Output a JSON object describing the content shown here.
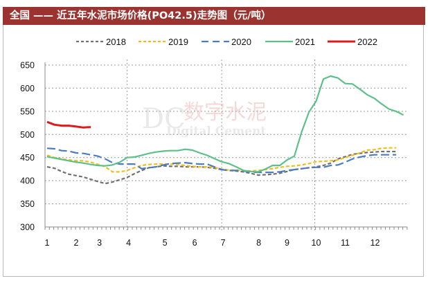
{
  "title": "全国 —— 近五年水泥市场价格(PO42.5)走势图（元/吨）",
  "watermark": {
    "logo": "DC",
    "cn": "数字水泥",
    "en": "Digital Cement"
  },
  "chart_data": {
    "type": "line",
    "title": "全国 —— 近五年水泥市场价格(PO42.5)走势图（元/吨）",
    "xlabel": "",
    "ylabel": "",
    "x_tick_labels": [
      "1",
      "2",
      "3",
      "4",
      "5",
      "6",
      "7",
      "8",
      "9",
      "10",
      "11",
      "12"
    ],
    "y_ticks": [
      300,
      350,
      400,
      450,
      500,
      550,
      600,
      650
    ],
    "ylim": [
      300,
      650
    ],
    "grid": "dotted horizontal; dotted vertical at 4, 7, 10",
    "legend_position": "top",
    "sampling": "weekly",
    "series": [
      {
        "name": "2018",
        "color": "#707070",
        "style": "dashed",
        "values": [
          430,
          427,
          420,
          414,
          411,
          408,
          403,
          398,
          394,
          397,
          402,
          407,
          415,
          422,
          428,
          430,
          432,
          431,
          431,
          430,
          430,
          430,
          429,
          427,
          424,
          422,
          421,
          419,
          416,
          412,
          413,
          414,
          416,
          420,
          424,
          426,
          428,
          430,
          433,
          438,
          447,
          452,
          457,
          459,
          461,
          462,
          463,
          463,
          463
        ]
      },
      {
        "name": "2019",
        "color": "#f2bc1a",
        "style": "dashed",
        "values": [
          455,
          450,
          447,
          445,
          443,
          443,
          440,
          435,
          430,
          419,
          419,
          422,
          428,
          433,
          435,
          436,
          436,
          436,
          435,
          433,
          431,
          430,
          430,
          429,
          425,
          423,
          423,
          421,
          421,
          422,
          424,
          426,
          429,
          431,
          432,
          434,
          437,
          441,
          442,
          443,
          445,
          450,
          455,
          460,
          466,
          467,
          470,
          471,
          471
        ]
      },
      {
        "name": "2020",
        "color": "#4a7cc4",
        "style": "longdash",
        "values": [
          470,
          469,
          465,
          464,
          460,
          459,
          456,
          453,
          447,
          439,
          436,
          436,
          436,
          426,
          428,
          430,
          434,
          437,
          438,
          439,
          437,
          436,
          436,
          430,
          424,
          422,
          422,
          421,
          419,
          418,
          418,
          418,
          419,
          422,
          424,
          426,
          428,
          429,
          429,
          433,
          434,
          440,
          447,
          451,
          454,
          456,
          456,
          456,
          456
        ]
      },
      {
        "name": "2021",
        "color": "#5cc08a",
        "style": "solid",
        "values": [
          452,
          449,
          446,
          443,
          440,
          438,
          435,
          433,
          432,
          434,
          440,
          450,
          451,
          455,
          459,
          462,
          464,
          465,
          465,
          468,
          466,
          460,
          455,
          448,
          441,
          437,
          430,
          422,
          420,
          419,
          425,
          433,
          433,
          445,
          453,
          505,
          548,
          572,
          620,
          626,
          622,
          610,
          609,
          598,
          586,
          578,
          566,
          555,
          550,
          542
        ]
      },
      {
        "name": "2022",
        "color": "#e01a1a",
        "style": "solid",
        "values": [
          527,
          521,
          519,
          519,
          517,
          515,
          516
        ]
      }
    ]
  }
}
